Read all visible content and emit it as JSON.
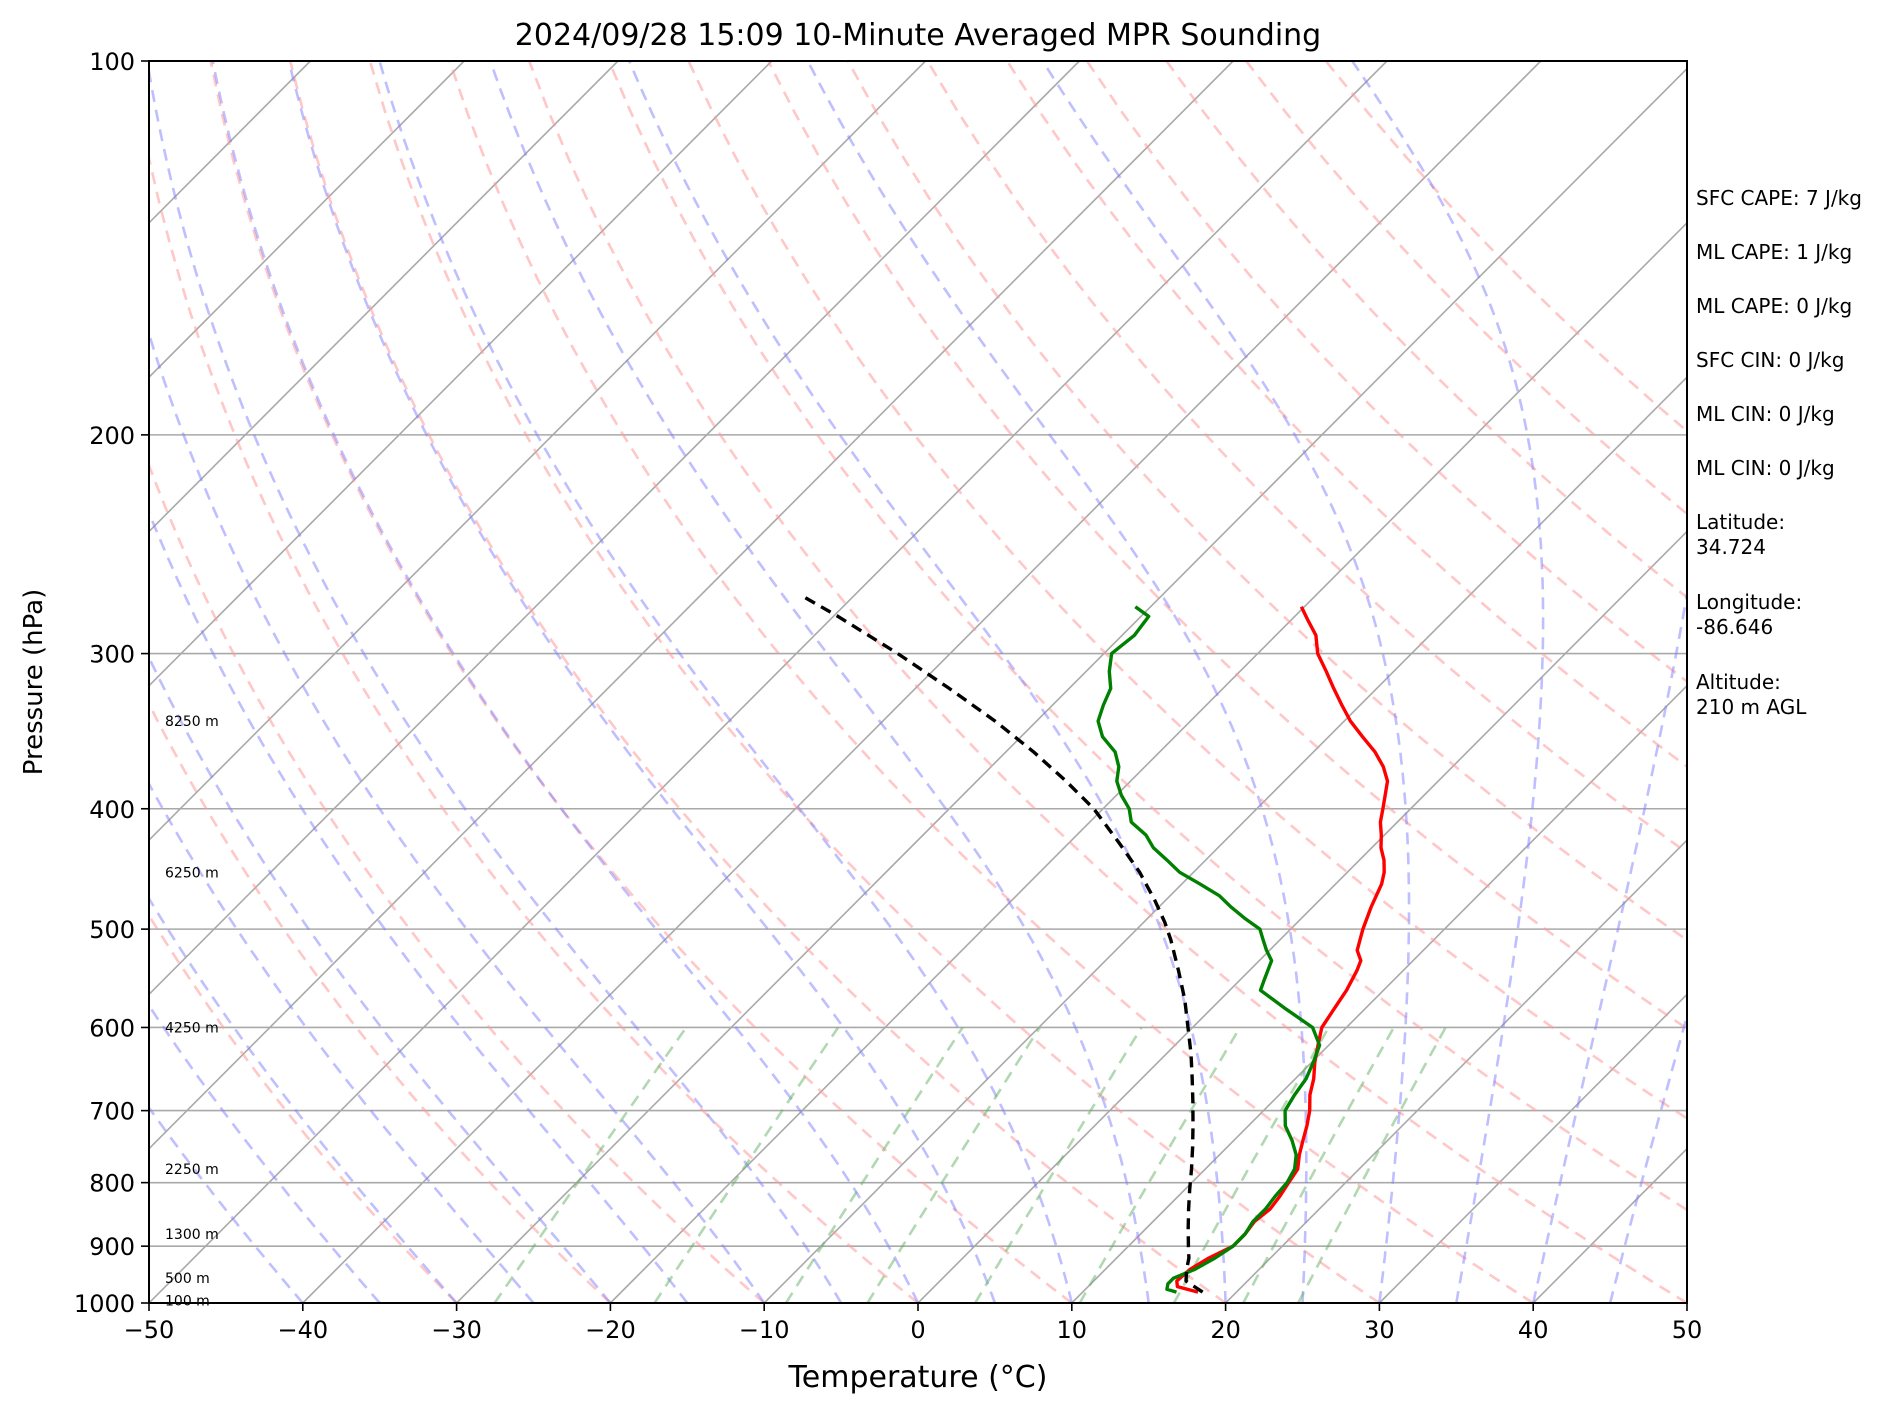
{
  "chart_data": {
    "type": "line",
    "title": "2024/09/28 15:09 10-Minute Averaged MPR Sounding",
    "xlabel": "Temperature (°C)",
    "ylabel": "Pressure (hPa)",
    "xlim": [
      -50,
      50
    ],
    "ylim": [
      1000,
      100
    ],
    "y_scale": "log",
    "x_ticks": [
      "−50",
      "−40",
      "−30",
      "−20",
      "−10",
      "0",
      "10",
      "20",
      "30",
      "40",
      "50"
    ],
    "y_ticks": [
      "100",
      "200",
      "300",
      "400",
      "500",
      "600",
      "700",
      "800",
      "900",
      "1000"
    ],
    "grid": true,
    "height_labels": [
      {
        "text": "8250 m",
        "p": 340
      },
      {
        "text": "6250 m",
        "p": 450
      },
      {
        "text": "4250 m",
        "p": 600
      },
      {
        "text": "2250 m",
        "p": 780
      },
      {
        "text": "1300 m",
        "p": 880
      },
      {
        "text": "500 m",
        "p": 955
      },
      {
        "text": "100 m",
        "p": 995
      }
    ],
    "series": [
      {
        "color": "#ff0000",
        "points": [
          [
            17.5,
            980
          ],
          [
            15.8,
            970
          ],
          [
            15.4,
            960
          ],
          [
            15.5,
            940
          ],
          [
            16,
            920
          ],
          [
            16.8,
            900
          ],
          [
            16.8,
            880
          ],
          [
            16.6,
            860
          ],
          [
            16.8,
            840
          ],
          [
            16.6,
            820
          ],
          [
            16.3,
            800
          ],
          [
            16,
            780
          ],
          [
            15.2,
            760
          ],
          [
            14.5,
            740
          ],
          [
            13.8,
            720
          ],
          [
            13,
            700
          ],
          [
            12,
            680
          ],
          [
            11.2,
            660
          ],
          [
            10.2,
            640
          ],
          [
            9.3,
            620
          ],
          [
            8.4,
            600
          ],
          [
            8,
            580
          ],
          [
            7.6,
            560
          ],
          [
            7,
            540
          ],
          [
            6.6,
            530
          ],
          [
            5.7,
            520
          ],
          [
            4.7,
            500
          ],
          [
            3.8,
            480
          ],
          [
            3,
            460
          ],
          [
            2.4,
            450
          ],
          [
            1.6,
            440
          ],
          [
            0.6,
            430
          ],
          [
            -0.2,
            420
          ],
          [
            -1.1,
            410
          ],
          [
            -1.8,
            400
          ],
          [
            -3.3,
            380
          ],
          [
            -4.5,
            370
          ],
          [
            -6,
            360
          ],
          [
            -7.8,
            350
          ],
          [
            -9.6,
            340
          ],
          [
            -11.2,
            330
          ],
          [
            -12.8,
            320
          ],
          [
            -14.4,
            310
          ],
          [
            -16.1,
            300
          ],
          [
            -17.4,
            290
          ],
          [
            -18.9,
            282
          ],
          [
            -20.2,
            275
          ]
        ]
      },
      {
        "color": "#008000",
        "points": [
          [
            16.1,
            980
          ],
          [
            15.3,
            975
          ],
          [
            15,
            965
          ],
          [
            15,
            955
          ],
          [
            15.8,
            940
          ],
          [
            16.4,
            920
          ],
          [
            16.8,
            900
          ],
          [
            16.8,
            880
          ],
          [
            16.5,
            860
          ],
          [
            16.5,
            840
          ],
          [
            16.3,
            820
          ],
          [
            16.2,
            800
          ],
          [
            15.8,
            780
          ],
          [
            15,
            760
          ],
          [
            13.8,
            740
          ],
          [
            12.4,
            720
          ],
          [
            11.4,
            700
          ],
          [
            11,
            680
          ],
          [
            10.7,
            660
          ],
          [
            10.1,
            640
          ],
          [
            9.4,
            620
          ],
          [
            7.8,
            600
          ],
          [
            4.9,
            580
          ],
          [
            2,
            560
          ],
          [
            1.6,
            550
          ],
          [
            0.8,
            530
          ],
          [
            -0.2,
            520
          ],
          [
            -1.1,
            510
          ],
          [
            -2,
            500
          ],
          [
            -3.7,
            490
          ],
          [
            -5.3,
            480
          ],
          [
            -6.8,
            470
          ],
          [
            -8.8,
            460
          ],
          [
            -10.9,
            450
          ],
          [
            -12.5,
            440
          ],
          [
            -14.2,
            430
          ],
          [
            -15.5,
            420
          ],
          [
            -17.3,
            410
          ],
          [
            -18.3,
            400
          ],
          [
            -19.7,
            390
          ],
          [
            -20.9,
            380
          ],
          [
            -21.7,
            370
          ],
          [
            -22.9,
            360
          ],
          [
            -24.7,
            350
          ],
          [
            -26,
            340
          ],
          [
            -26.7,
            330
          ],
          [
            -27.3,
            320
          ],
          [
            -28.5,
            310
          ],
          [
            -29.5,
            300
          ],
          [
            -29.2,
            290
          ],
          [
            -29.5,
            280
          ],
          [
            -30.1,
            278
          ],
          [
            -31,
            275
          ]
        ]
      },
      {
        "color": "#000000",
        "dashed": true,
        "points": [
          [
            17.8,
            980
          ],
          [
            16,
            960
          ],
          [
            15.3,
            940
          ],
          [
            14.7,
            920
          ],
          [
            13.9,
            900
          ],
          [
            12.7,
            870
          ],
          [
            11.5,
            840
          ],
          [
            10.3,
            810
          ],
          [
            9.1,
            780
          ],
          [
            7.8,
            750
          ],
          [
            6.4,
            720
          ],
          [
            4.9,
            690
          ],
          [
            3.3,
            660
          ],
          [
            1.6,
            630
          ],
          [
            -0.3,
            600
          ],
          [
            -2.3,
            570
          ],
          [
            -4.6,
            540
          ],
          [
            -7.1,
            510
          ],
          [
            -8.6,
            494
          ],
          [
            -10.7,
            474
          ],
          [
            -13.5,
            450
          ],
          [
            -16.9,
            425
          ],
          [
            -20.6,
            400
          ],
          [
            -24.2,
            380
          ],
          [
            -28.2,
            360
          ],
          [
            -32.7,
            340
          ],
          [
            -37.8,
            320
          ],
          [
            -43.4,
            300
          ],
          [
            -49.7,
            280
          ],
          [
            -53.2,
            270
          ]
        ]
      }
    ],
    "background_lines": {
      "isotherms_c": [
        -120,
        -110,
        -100,
        -90,
        -80,
        -70,
        -60,
        -50,
        -40,
        -30,
        -20,
        -10,
        0,
        10,
        20,
        30,
        40,
        50
      ],
      "dry_adiabats_c": [
        -30,
        -20,
        -10,
        0,
        10,
        20,
        30,
        40,
        50,
        60,
        70,
        80,
        90,
        100,
        110,
        120,
        130,
        140,
        150
      ],
      "moist_adiabats_c": [
        -40,
        -35,
        -30,
        -25,
        -20,
        -15,
        -10,
        -5,
        0,
        5,
        10,
        15,
        20,
        25,
        30,
        35,
        40,
        45
      ],
      "mixing_ratios_gkg": [
        0.4,
        1,
        2,
        3,
        5,
        8,
        12,
        16,
        20
      ],
      "colors": {
        "isotherm": "#a9a9a9",
        "dry_adiabat": "#ff9999",
        "moist_adiabat": "#8080ff",
        "mixing_ratio": "#66b266"
      }
    }
  },
  "stats": {
    "sfc_cape": "SFC CAPE: 7 J/kg",
    "ml_cape": "ML CAPE: 1 J/kg",
    "mu_cape": "ML CAPE: 0 J/kg",
    "sfc_cin": "SFC CIN: 0 J/kg",
    "ml_cin": "ML CIN: 0 J/kg",
    "mu_cin": "ML CIN: 0 J/kg",
    "latitude_label": "Latitude:",
    "latitude_value": "34.724",
    "longitude_label": "Longitude:",
    "longitude_value": "-86.646",
    "altitude_label": "Altitude:",
    "altitude_value": "210 m AGL"
  }
}
